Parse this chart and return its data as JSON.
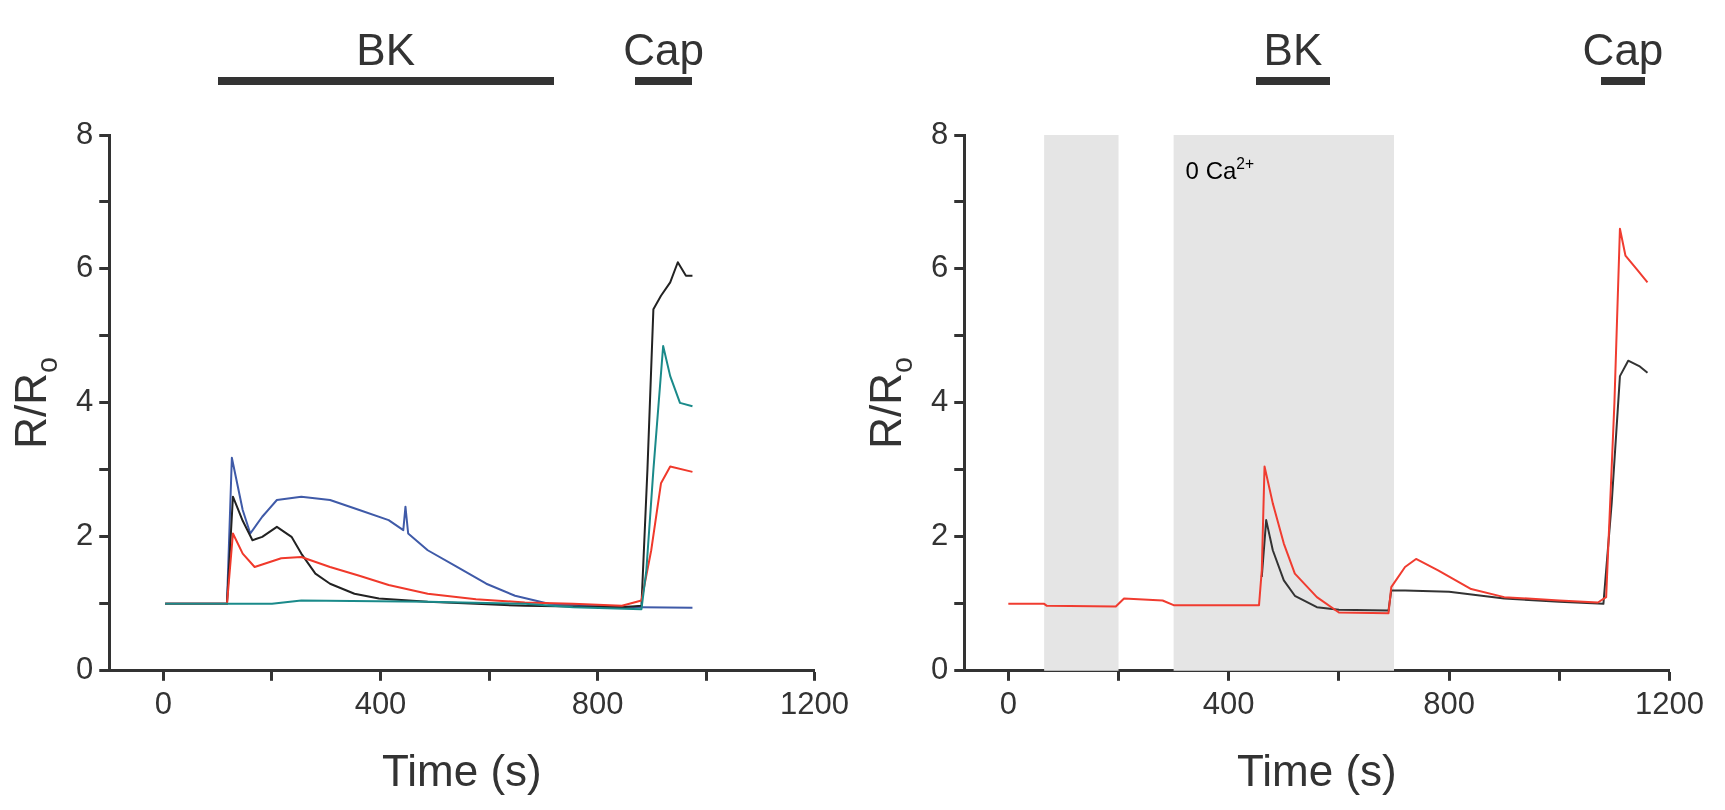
{
  "chart_data": [
    {
      "type": "line",
      "xlabel": "Time (s)",
      "ylabel": "R/R$_{o}$",
      "xlim": [
        -100,
        1200
      ],
      "xticks": [
        {
          "value": 0,
          "label": "0"
        },
        {
          "value": 200,
          "label": null
        },
        400,
        {
          "value": 600,
          "label": null
        },
        800,
        {
          "value": 1000,
          "label": null
        },
        1200
      ],
      "ylim": [
        0,
        8
      ],
      "yticks": [
        0,
        {
          "value": 1,
          "label": null
        },
        2,
        {
          "value": 3,
          "label": null
        },
        4,
        {
          "value": 5,
          "label": null
        },
        6,
        {
          "value": 7,
          "label": null
        },
        8
      ],
      "grid": false,
      "legend": false,
      "marker": "none",
      "line_style": "solid",
      "annotations": [
        "BK",
        "Cap"
      ],
      "series": [
        {
          "color": "#3f5aa8",
          "x": [
            3,
            60,
            117,
            126,
            146,
            160,
            182,
            209,
            254,
            307,
            361,
            415,
            442,
            446,
            451,
            487,
            541,
            595,
            648,
            710,
            800,
            881,
            975
          ],
          "values": [
            1.0,
            1.0,
            1.0,
            3.18,
            2.4,
            2.05,
            2.3,
            2.55,
            2.6,
            2.55,
            2.4,
            2.25,
            2.1,
            2.45,
            2.05,
            1.8,
            1.55,
            1.3,
            1.12,
            1.0,
            0.97,
            0.95,
            0.94
          ]
        },
        {
          "color": "#222222",
          "x": [
            3,
            60,
            117,
            128,
            146,
            164,
            182,
            209,
            236,
            254,
            280,
            307,
            352,
            397,
            487,
            576,
            666,
            755,
            845,
            881,
            892,
            903,
            917,
            934,
            948,
            963,
            975
          ],
          "values": [
            1.0,
            1.0,
            1.0,
            2.6,
            2.24,
            1.95,
            2.0,
            2.15,
            2.0,
            1.75,
            1.45,
            1.3,
            1.15,
            1.08,
            1.03,
            1.0,
            0.97,
            0.96,
            0.95,
            0.97,
            3.0,
            5.4,
            5.6,
            5.8,
            6.1,
            5.9,
            5.9
          ]
        },
        {
          "color": "#f0392b",
          "x": [
            3,
            60,
            117,
            128,
            146,
            168,
            217,
            254,
            307,
            361,
            415,
            487,
            576,
            666,
            755,
            845,
            881,
            899,
            917,
            934,
            975
          ],
          "values": [
            1.0,
            1.0,
            1.0,
            2.05,
            1.75,
            1.55,
            1.68,
            1.7,
            1.55,
            1.42,
            1.28,
            1.15,
            1.07,
            1.02,
            1.0,
            0.97,
            1.05,
            1.8,
            2.8,
            3.05,
            2.97
          ]
        },
        {
          "color": "#1a8a8a",
          "x": [
            3,
            200,
            254,
            487,
            666,
            755,
            881,
            890,
            903,
            921,
            934,
            952,
            975
          ],
          "values": [
            1.0,
            1.0,
            1.05,
            1.03,
            1.0,
            0.95,
            0.92,
            1.5,
            3.0,
            4.85,
            4.4,
            4.0,
            3.95
          ]
        }
      ]
    },
    {
      "type": "line",
      "xlabel": "Time (s)",
      "ylabel": "R/R$_{o}$",
      "xlim": [
        -80,
        1200
      ],
      "xticks": [
        {
          "value": 0,
          "label": "0"
        },
        {
          "value": 200,
          "label": null
        },
        400,
        {
          "value": 600,
          "label": null
        },
        800,
        {
          "value": 1000,
          "label": null
        },
        1200
      ],
      "ylim": [
        0,
        8
      ],
      "yticks": [
        0,
        {
          "value": 1,
          "label": null
        },
        2,
        {
          "value": 3,
          "label": null
        },
        4,
        {
          "value": 5,
          "label": null
        },
        6,
        {
          "value": 7,
          "label": null
        },
        8
      ],
      "grid": false,
      "legend": false,
      "marker": "none",
      "line_style": "solid",
      "annotations": [
        "BK",
        "Cap"
      ],
      "bands": [
        {
          "axis": "x",
          "from": 65,
          "to": 200,
          "color": "#e5e5e5"
        },
        {
          "axis": "x",
          "from": 300,
          "to": 700,
          "label": "0 Ca$^{2+}$",
          "color": "#e5e5e5"
        }
      ],
      "series": [
        {
          "color": "#333333",
          "x": [
            460,
            468,
            480,
            500,
            520,
            560,
            600,
            690,
            695,
            720,
            800,
            900,
            1000,
            1080,
            1095,
            1110,
            1125,
            1145,
            1160
          ],
          "values": [
            1.4,
            2.25,
            1.8,
            1.35,
            1.12,
            0.95,
            0.91,
            0.9,
            1.2,
            1.2,
            1.18,
            1.08,
            1.03,
            1.0,
            2.5,
            4.4,
            4.63,
            4.55,
            4.45
          ]
        },
        {
          "color": "#f03c30",
          "x": [
            0,
            65,
            70,
            195,
            210,
            280,
            300,
            455,
            460,
            465,
            480,
            500,
            520,
            560,
            600,
            690,
            695,
            720,
            740,
            780,
            840,
            900,
            1000,
            1070,
            1085,
            1100,
            1110,
            1120,
            1140,
            1160
          ],
          "values": [
            1.0,
            1.0,
            0.97,
            0.96,
            1.08,
            1.05,
            0.98,
            0.98,
            1.5,
            3.05,
            2.5,
            1.9,
            1.45,
            1.1,
            0.87,
            0.86,
            1.25,
            1.55,
            1.67,
            1.5,
            1.22,
            1.1,
            1.05,
            1.02,
            1.1,
            4.0,
            6.6,
            6.2,
            6.0,
            5.8
          ]
        }
      ]
    }
  ]
}
